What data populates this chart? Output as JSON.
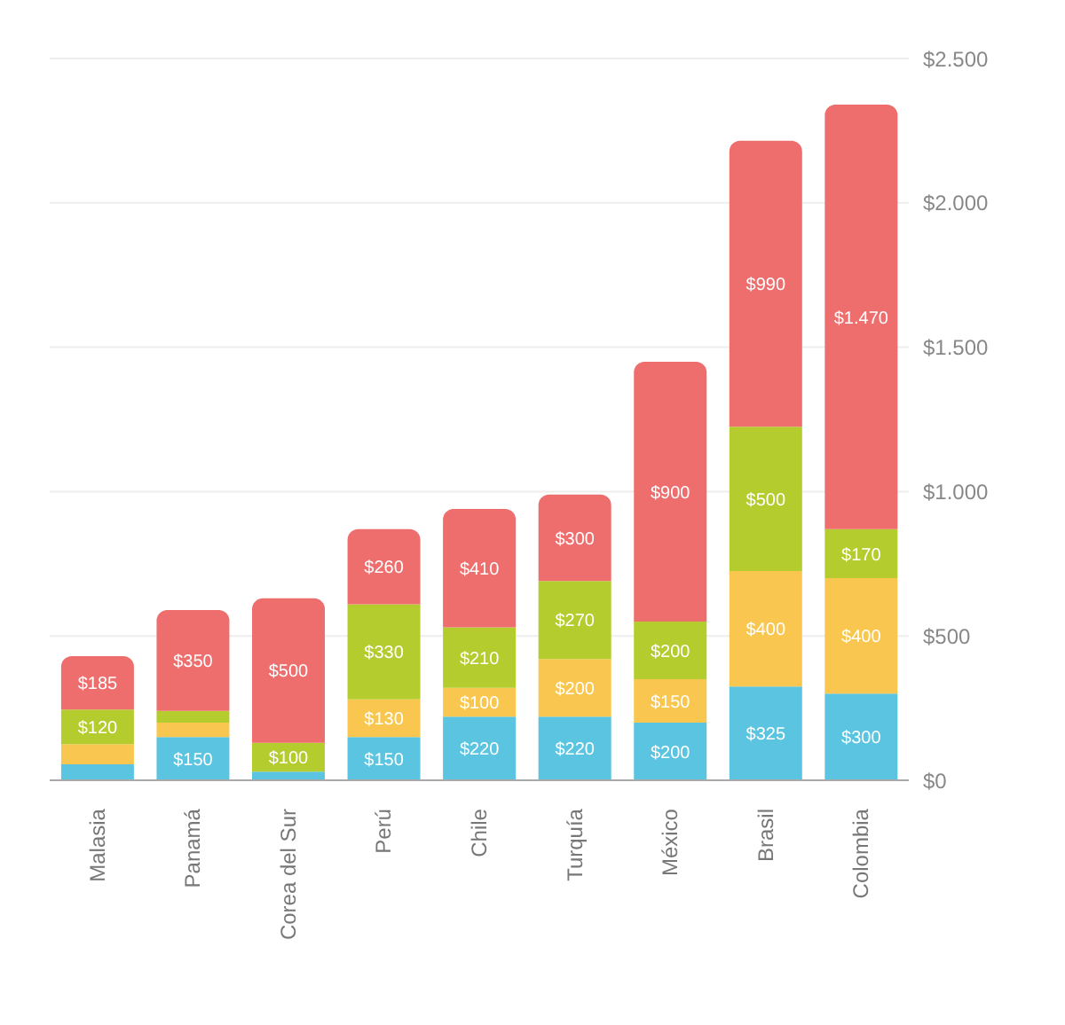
{
  "chart_data": {
    "type": "bar",
    "stacked": true,
    "categories": [
      "Malasia",
      "Panamá",
      "Corea del Sur",
      "Perú",
      "Chile",
      "Turquía",
      "México",
      "Brasil",
      "Colombia"
    ],
    "series": [
      {
        "color": "#5bc4e0",
        "values": [
          55,
          150,
          30,
          150,
          220,
          220,
          200,
          325,
          300
        ],
        "value_labels": [
          null,
          "$150",
          null,
          "$150",
          "$220",
          "$220",
          "$200",
          "$325",
          "$300"
        ]
      },
      {
        "color": "#f9c74f",
        "values": [
          70,
          50,
          0,
          130,
          100,
          200,
          150,
          400,
          400
        ],
        "value_labels": [
          null,
          null,
          null,
          "$130",
          "$100",
          "$200",
          "$150",
          "$400",
          "$400"
        ]
      },
      {
        "color": "#b5cc2e",
        "values": [
          120,
          40,
          100,
          330,
          210,
          270,
          200,
          500,
          170
        ],
        "value_labels": [
          "$120",
          null,
          "$100",
          "$330",
          "$210",
          "$270",
          "$200",
          "$500",
          "$170"
        ]
      },
      {
        "color": "#ee6e6e",
        "values": [
          185,
          350,
          500,
          260,
          410,
          300,
          900,
          990,
          1470
        ],
        "value_labels": [
          "$185",
          "$350",
          "$500",
          "$260",
          "$410",
          "$300",
          "$900",
          "$990",
          "$1.470"
        ]
      }
    ],
    "ylim": [
      0,
      2500
    ],
    "yticks": [
      {
        "value": 0,
        "label": "$0"
      },
      {
        "value": 500,
        "label": "$500"
      },
      {
        "value": 1000,
        "label": "$1.000"
      },
      {
        "value": 1500,
        "label": "$1.500"
      },
      {
        "value": 2000,
        "label": "$2.000"
      },
      {
        "value": 2500,
        "label": "$2.500"
      }
    ],
    "grid": "y",
    "legend": false
  }
}
